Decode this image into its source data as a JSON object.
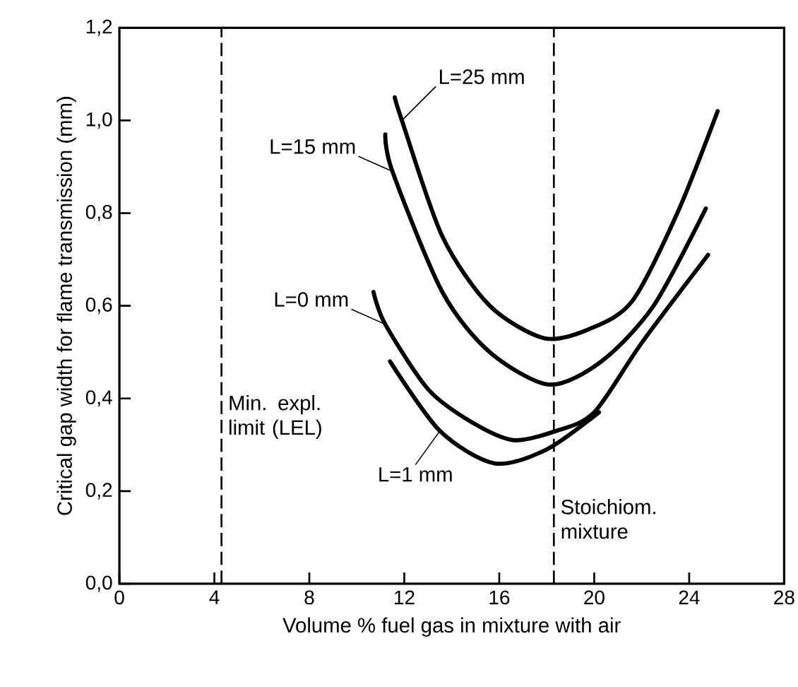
{
  "chart_data": {
    "type": "line",
    "xlabel": "Volume % fuel gas in mixture with air",
    "ylabel": "Critical gap width for flame transmission (mm)",
    "xlim": [
      0,
      28
    ],
    "xticks": [
      0,
      4,
      8,
      12,
      16,
      20,
      24,
      28
    ],
    "ylim": [
      0,
      1.2
    ],
    "yticks": [
      {
        "value": 0,
        "label": "0,0"
      },
      {
        "value": 0.2,
        "label": "0,2"
      },
      {
        "value": 0.4,
        "label": "0,4"
      },
      {
        "value": 0.6,
        "label": "0,6"
      },
      {
        "value": 0.8,
        "label": "0,8"
      },
      {
        "value": 1.0,
        "label": "1,0"
      },
      {
        "value": 1.2,
        "label": "1,2"
      }
    ],
    "grid": false,
    "marker": "none",
    "line_style": "solid",
    "series": [
      {
        "color": "#000000",
        "x": [
          11.6,
          11.9,
          13.6,
          15.6,
          17.9,
          19.8,
          21.6,
          23.5,
          25.2
        ],
        "values": [
          1.05,
          1.0,
          0.75,
          0.6,
          0.53,
          0.55,
          0.61,
          0.8,
          1.02
        ]
      },
      {
        "color": "#000000",
        "x": [
          11.2,
          11.5,
          13.6,
          15.6,
          18.1,
          20.3,
          22.5,
          24.7
        ],
        "values": [
          0.97,
          0.89,
          0.63,
          0.5,
          0.43,
          0.48,
          0.6,
          0.81
        ]
      },
      {
        "color": "#000000",
        "x": [
          10.7,
          11.2,
          13,
          14.8,
          16.6,
          18.4,
          20,
          22,
          24.8
        ],
        "values": [
          0.63,
          0.56,
          0.42,
          0.35,
          0.31,
          0.33,
          0.37,
          0.52,
          0.71
        ]
      },
      {
        "color": "#000000",
        "x": [
          11.4,
          13.5,
          15.8,
          18,
          20.2
        ],
        "values": [
          0.48,
          0.33,
          0.26,
          0.29,
          0.37
        ]
      }
    ],
    "annotations": [
      {
        "text": "L=25 mm",
        "x": 11.9,
        "y": 1.0
      },
      {
        "text": "L=15 mm",
        "x": 11.5,
        "y": 0.89
      },
      {
        "text": "L=0 mm",
        "x": 11.2,
        "y": 0.56
      },
      {
        "text": "L=1 mm",
        "x": 13.5,
        "y": 0.33
      }
    ],
    "ref_lines": [
      {
        "axis": "x",
        "value": 4.3,
        "label": "Min. expl. limit (LEL)",
        "line_style": "dashed"
      },
      {
        "axis": "x",
        "value": 18.3,
        "label": "Stoichiom. mixture",
        "line_style": "dashed"
      }
    ]
  }
}
